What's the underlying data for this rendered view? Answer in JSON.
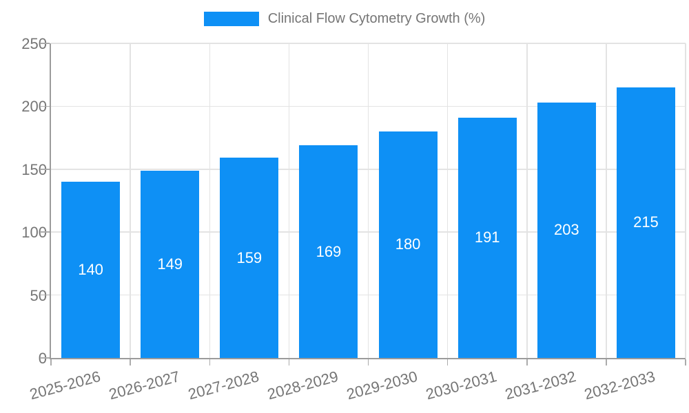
{
  "chart_data": {
    "type": "bar",
    "title": "",
    "legend": "Clinical Flow Cytometry Growth (%)",
    "legend_position": "top-center",
    "categories": [
      "2025-2026",
      "2026-2027",
      "2027-2028",
      "2028-2029",
      "2029-2030",
      "2030-2031",
      "2031-2032",
      "2032-2033"
    ],
    "values": [
      140,
      149,
      159,
      169,
      180,
      191,
      203,
      215
    ],
    "xlabel": "",
    "ylabel": "",
    "ylim": [
      0,
      250
    ],
    "yticks": [
      0,
      50,
      100,
      150,
      200,
      250
    ],
    "grid": "horizontal and vertical gridlines shown",
    "colors": {
      "bar": "#0E90F5",
      "bar_value_label": "#ffffff",
      "axis_text": "#757575",
      "legend_text": "#757575",
      "gridline": "#e3e3e3",
      "axis_line": "#9b9b9b"
    }
  }
}
